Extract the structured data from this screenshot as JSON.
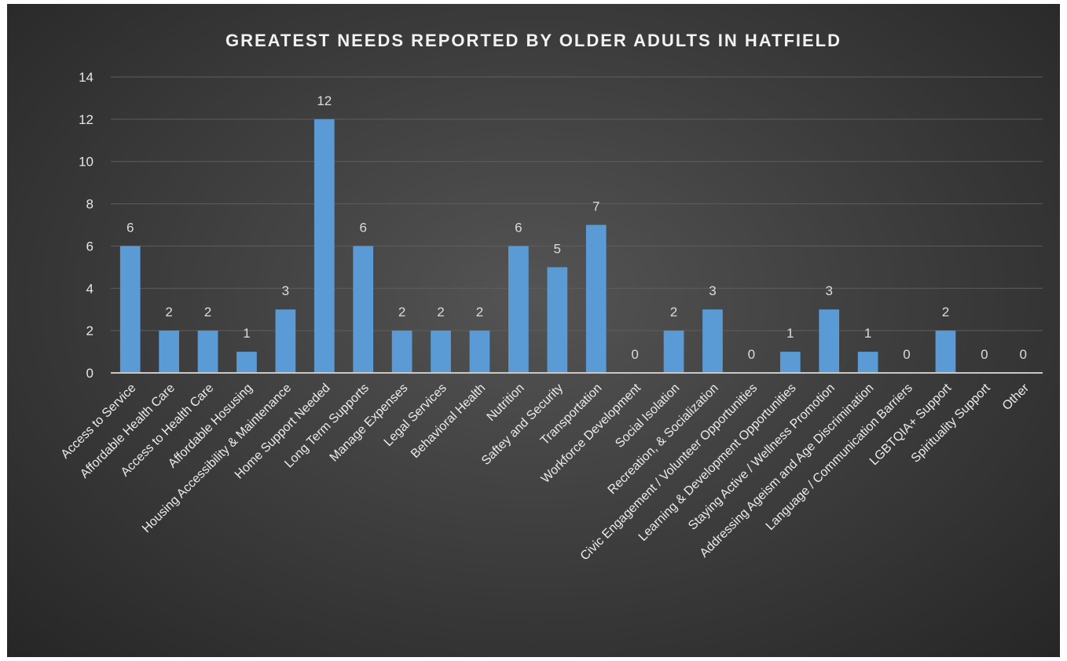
{
  "chart_data": {
    "type": "bar",
    "title": "GREATEST NEEDS REPORTED BY OLDER ADULTS IN HATFIELD",
    "xlabel": "",
    "ylabel": "",
    "ylim": [
      0,
      14
    ],
    "yticks": [
      0,
      2,
      4,
      6,
      8,
      10,
      12,
      14
    ],
    "grid": true,
    "legend": "none",
    "data_labels": true,
    "bar_color": "#5b9bd5",
    "categories": [
      "Access to Service",
      "Affordable Health Care",
      "Access to Health Care",
      "Affordable Hosusing",
      "Housing Accessibility & Maintenance",
      "Home Support Needed",
      "Long Term Supports",
      "Manage Expenses",
      "Legal Services",
      "Behavioral Health",
      "Nutrition",
      "Saftey and Security",
      "Transportation",
      "Workforce Development",
      "Social Isolation",
      "Recreation, & Socialization",
      "Civic Engagement / Volunteer Opportunities",
      "Learning & Development Opportunities",
      "Staying Active / Wellness Promotion",
      "Addressing Ageism and Age Discrimination",
      "Language / Communication Barriers",
      "LGBTQIA+ Support",
      "Spirituality Support",
      "Other"
    ],
    "values": [
      6,
      2,
      2,
      1,
      3,
      12,
      6,
      2,
      2,
      2,
      6,
      5,
      7,
      0,
      2,
      3,
      0,
      1,
      3,
      1,
      0,
      2,
      0,
      0
    ]
  }
}
